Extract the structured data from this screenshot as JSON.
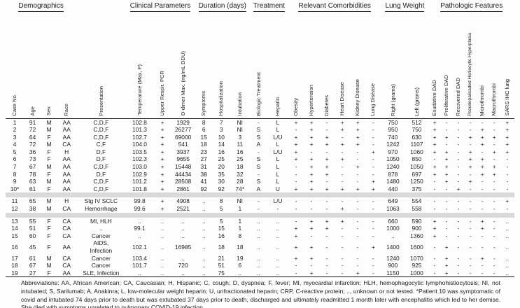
{
  "table": {
    "group_headers": [
      {
        "label": "Demographics",
        "span": 4
      },
      {
        "label": "",
        "span": 1
      },
      {
        "label": "Clinical Parameters",
        "span": 3
      },
      {
        "label": "Duration (days)",
        "span": 3
      },
      {
        "label": "Treatment",
        "span": 2
      },
      {
        "label": "Relevant Comorbidities",
        "span": 6
      },
      {
        "label": "Lung Weight",
        "span": 2
      },
      {
        "label": "Pathologic Features",
        "span": 7
      }
    ],
    "columns": [
      "Case No.",
      "Age",
      "Sex",
      "Race",
      "Presentation",
      "Temperature (Max, F)",
      "Upper Respir. PCR",
      "D-dimer Max. (ng/mL DDU)",
      "Symptoms",
      "Hospitalization",
      "Intubation",
      "Biologic Treatment",
      "Heparin",
      "Obesity",
      "Hypertension",
      "Diabetes",
      "Heart Disease",
      "Kidney Disease",
      "Lung Disease",
      "Right (grams)",
      "Left (grams)",
      "Exudative DAD",
      "Proliferative DAD",
      "Recovered DAD",
      "Pseudopalisaded Histiocytic Hyperplasia",
      "Microthrombi",
      "Macrothrombi",
      "SARS IHC lung"
    ],
    "sections": [
      {
        "rows": [
          [
            "1",
            "91",
            "M",
            "AA",
            "C,D,F",
            "102.8",
            "+",
            "1929",
            "8",
            "7",
            "NI",
            "-",
            "L",
            "+",
            "+",
            "-",
            "+",
            "+",
            "-",
            "750",
            "512",
            "+",
            "-",
            "-",
            "-",
            "-",
            "-",
            "+"
          ],
          [
            "2",
            "72",
            "M",
            "AA",
            "C,D,F",
            "101.3",
            "+",
            "26277",
            "6",
            "3",
            "NI",
            "S",
            "L",
            "-",
            "+",
            "-",
            "+",
            "+",
            "-",
            "950",
            "750",
            "+",
            "-",
            "-",
            "-",
            "+",
            "-",
            "+"
          ],
          [
            "3",
            "64",
            "F",
            "AA",
            "C,D,F",
            "102.7",
            "+",
            "69000",
            "15",
            "10",
            "3",
            "S",
            "L/U",
            "+",
            "+",
            "+",
            "-",
            "+",
            "-",
            "740",
            "630",
            "+",
            "+",
            "-",
            "+",
            "+",
            "+",
            "+"
          ],
          [
            "4",
            "72",
            "M",
            "CA",
            "C,F",
            "104.0",
            "+",
            "541",
            "18",
            "14",
            "11",
            "A",
            "L",
            "+",
            "+",
            "+",
            "+",
            "+",
            "-",
            "1242",
            "1107",
            "+",
            "-",
            "-",
            "-",
            "+",
            "-",
            "+"
          ],
          [
            "5",
            "36",
            "F",
            "H",
            "D,F",
            "103.5",
            "+",
            "3937",
            "23",
            "16",
            "16",
            "-",
            "L/U",
            "+",
            "-",
            "-",
            "-",
            "-",
            "+",
            "970",
            "1060",
            "+",
            "+",
            "-",
            "+",
            "-",
            "+",
            "+"
          ],
          [
            "6",
            "73",
            "F",
            "AA",
            "D,F",
            "102.3",
            "+",
            "9655",
            "27",
            "25",
            "25",
            "S",
            "L",
            "+",
            "+",
            "+",
            "+",
            "-",
            "-",
            "1050",
            "850",
            "-",
            "+",
            "-",
            "+",
            "+",
            "-",
            "-"
          ],
          [
            "7",
            "67",
            "M",
            "AA",
            "C,D,F",
            "103.0",
            "+",
            "15448",
            "31",
            "20",
            "18",
            "S",
            "L",
            "-",
            "+",
            "+",
            "-",
            "+",
            "-",
            "1240",
            "1050",
            "+",
            "+",
            "-",
            "+",
            "+",
            "+",
            "-"
          ],
          [
            "8",
            "78",
            "F",
            "AA",
            "D,F",
            "102.9",
            "+",
            "44434",
            "38",
            "35",
            "32",
            "-",
            "L",
            "-",
            "+",
            "+",
            "-",
            "-",
            "-",
            "878",
            "697",
            "+",
            "+",
            "-",
            "-",
            "+",
            "+",
            "-"
          ],
          [
            "9",
            "63",
            "M",
            "AA",
            "C,D,F",
            "101.2",
            "+",
            "28508",
            "41",
            "30",
            "28",
            "S",
            "L",
            "-",
            "+",
            "-",
            "-",
            "-",
            "+",
            "1480",
            "1250",
            "-",
            "+",
            "-",
            "+",
            "-",
            "-",
            "-"
          ],
          [
            "10*",
            "61",
            "F",
            "AA",
            "C,D,F",
            "101.8",
            "+",
            "2861",
            "92",
            "92",
            "74*",
            "A",
            "U",
            "+",
            "+",
            "+",
            "+",
            "+",
            "+",
            "440",
            "375",
            "-",
            "-",
            "+",
            "-",
            "-",
            "-",
            "-"
          ]
        ]
      },
      {
        "rows": [
          [
            "11",
            "65",
            "M",
            "H",
            "Stg IV SCLC",
            "99.8",
            "+",
            "4908",
            "..",
            "8",
            "NI",
            "-",
            "L/U",
            "-",
            "-",
            "-",
            "-",
            "-",
            "-",
            "649",
            "554",
            "-",
            "-",
            "-",
            "-",
            "-",
            "-",
            "+"
          ],
          [
            "12",
            "38",
            "M",
            "CA",
            "Hemorrhage",
            "99.6",
            "+",
            "2521",
            "..",
            "5",
            "1",
            "-",
            "-",
            "-",
            "-",
            "-",
            "+",
            "-",
            "-",
            "1063",
            "558",
            "-",
            "-",
            "-",
            "-",
            "-",
            "-",
            "-"
          ]
        ]
      },
      {
        "rows": [
          [
            "13",
            "55",
            "F",
            "CA",
            "MI, HLH",
            "..",
            "..",
            "..",
            "..",
            "5",
            "1",
            "..",
            "..",
            "-",
            "+",
            "+",
            "+",
            "-",
            "-",
            "660",
            "590",
            "+",
            "-",
            "-",
            "-",
            "+",
            "-",
            ".."
          ],
          [
            "14",
            "51",
            "F",
            "CA",
            "..",
            "99.1",
            "..",
            "..",
            "..",
            "15",
            "1",
            "..",
            "..",
            "+",
            "+",
            "+",
            "-",
            "-",
            "-",
            "1000",
            "900",
            "+",
            "-",
            "-",
            "-",
            "+",
            "-",
            ".."
          ],
          [
            "15",
            "60",
            "F",
            "CA",
            "Cancer",
            "..",
            "..",
            "..",
            "..",
            "16",
            "8",
            "..",
            "..",
            "+",
            "-",
            "-",
            "-",
            "-",
            "-",
            "..",
            "1360",
            "+",
            "-",
            "-",
            "-",
            "-",
            "-",
            ".."
          ],
          [
            "16",
            "45",
            "F",
            "AA",
            "AIDS,\nInfection",
            "102.1",
            "..",
            "16985",
            "..",
            "18",
            "18",
            "..",
            "..",
            "+",
            "+",
            "-",
            "-",
            "-",
            "+",
            "1400",
            "1600",
            "-",
            "+",
            "-",
            "-",
            "-",
            "-",
            ".."
          ],
          [
            "17",
            "61",
            "M",
            "CA",
            "Cancer",
            "103.4",
            "..",
            "..",
            "..",
            "21",
            "19",
            "..",
            "..",
            "+",
            "+",
            "-",
            "-",
            "-",
            "-",
            "1240",
            "1070",
            "-",
            "+",
            "-",
            "-",
            "+",
            "-",
            ".."
          ],
          [
            "18",
            "67",
            "M",
            "CA",
            "Cancer",
            "101.7",
            "..",
            "720",
            "..",
            "51",
            "6",
            "..",
            "..",
            "-",
            "-",
            "-",
            "-",
            "-",
            "-",
            "900",
            "925",
            "-",
            "+",
            "-",
            "-",
            "-",
            "-",
            ".."
          ],
          [
            "19",
            "27",
            "F",
            "AA",
            "SLE, Infection",
            "..",
            "..",
            "..",
            "..",
            "75",
            "..",
            "..",
            "..",
            "-",
            "+",
            "-",
            "-",
            "+",
            "-",
            "1150",
            "1000",
            "-",
            "+",
            "-",
            "-",
            "-",
            "-",
            ".."
          ]
        ]
      }
    ]
  },
  "footnote": "Abbreviations: AA, African American; CA, Caucasian; H, Hispanic; C, cough; D, dyspnea; F, fever; MI, myocardial infarction; HLH, hemophagocytic lymphohistiocytosis; NI, not intubated; S, Sarilumab; A, Anakinra; L, low-molecular weight heparin; U, unfractionated heparin; CRP, C-reactive protein; .., unknown or not tested. *Patient 10 was symptomatic of covid and intubated 74 days prior to death but was extubated 37 days prior to death, discharged and ultimately readmitted 1 month later with encephalitis which led to her demise. She died with symptoms unrelated to pulmonary COVID-19 infection."
}
